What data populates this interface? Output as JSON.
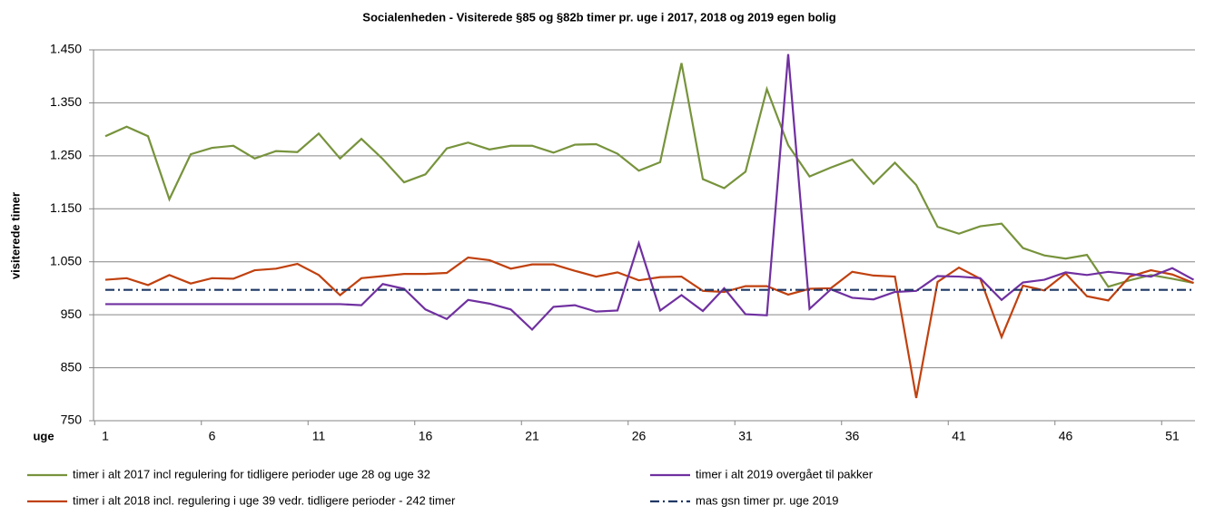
{
  "chart_data": {
    "type": "line",
    "title": "Socialenheden - Visiterede §85 og §82b timer pr. uge i 2017, 2018 og 2019 egen bolig",
    "x_label": "uge",
    "y_label": "visiterede timer",
    "categories": [
      1,
      null,
      null,
      null,
      null,
      6,
      null,
      null,
      null,
      null,
      11,
      null,
      null,
      null,
      null,
      16,
      null,
      null,
      null,
      null,
      21,
      null,
      null,
      null,
      null,
      26,
      null,
      null,
      null,
      null,
      31,
      null,
      null,
      null,
      null,
      36,
      null,
      null,
      null,
      null,
      41,
      null,
      null,
      null,
      null,
      46,
      null,
      null,
      null,
      null,
      51,
      null
    ],
    "ylim": [
      750,
      1450
    ],
    "yticks": [
      750,
      850,
      950,
      {
        "value": 1050,
        "label": "1.050"
      },
      {
        "value": 1150,
        "label": "1.150"
      },
      {
        "value": 1250,
        "label": "1.250"
      },
      {
        "value": 1350,
        "label": "1.350"
      },
      {
        "value": 1450,
        "label": "1.450"
      }
    ],
    "grid": true,
    "legend": "bottom",
    "series": [
      {
        "name": "timer i alt 2017 incl regulering for tidligere perioder uge 28 og uge 32",
        "color": "#77933c",
        "dash": "solid",
        "values": [
          1287,
          1305,
          1287,
          1168,
          1253,
          1265,
          1269,
          1245,
          1259,
          1257,
          1292,
          1245,
          1282,
          1244,
          1200,
          1215,
          1264,
          1275,
          1262,
          1269,
          1269,
          1256,
          1271,
          1272,
          1254,
          1222,
          1238,
          1425,
          1206,
          1189,
          1220,
          1376,
          1270,
          1211,
          1228,
          1243,
          1197,
          1237,
          1195,
          1116,
          1103,
          1117,
          1122,
          1076,
          1062,
          1056,
          1063,
          1003,
          1015,
          1025,
          1018,
          1010
        ]
      },
      {
        "name": "timer i alt 2018 incl. regulering i uge 39 vedr. tidligere perioder - 242 timer",
        "color": "#c0410f",
        "dash": "solid",
        "values": [
          1016,
          1019,
          1006,
          1025,
          1009,
          1019,
          1018,
          1034,
          1037,
          1046,
          1025,
          987,
          1019,
          1023,
          1027,
          1027,
          1029,
          1058,
          1053,
          1037,
          1045,
          1045,
          1033,
          1022,
          1030,
          1015,
          1021,
          1022,
          995,
          993,
          1004,
          1004,
          988,
          999,
          1000,
          1031,
          1024,
          1022,
          793,
          1012,
          1039,
          1018,
          908,
          1005,
          996,
          1028,
          985,
          977,
          1022,
          1034,
          1026,
          1010
        ]
      },
      {
        "name": "timer i alt 2019 overgået til pakker",
        "color": "#7030a0",
        "dash": "solid",
        "values": [
          970,
          970,
          970,
          970,
          970,
          970,
          970,
          970,
          970,
          970,
          970,
          970,
          968,
          1008,
          999,
          960,
          942,
          978,
          971,
          960,
          922,
          965,
          968,
          956,
          958,
          1085,
          958,
          987,
          957,
          1000,
          951,
          949,
          1442,
          961,
          998,
          982,
          979,
          993,
          995,
          1023,
          1022,
          1019,
          978,
          1011,
          1016,
          1030,
          1025,
          1031,
          1027,
          1022,
          1038,
          1016
        ]
      },
      {
        "name": "mas gsn timer pr. uge 2019",
        "color": "#1f3864",
        "dash": "dashdot",
        "values": [
          997,
          997,
          997,
          997,
          997,
          997,
          997,
          997,
          997,
          997,
          997,
          997,
          997,
          997,
          997,
          997,
          997,
          997,
          997,
          997,
          997,
          997,
          997,
          997,
          997,
          997,
          997,
          997,
          997,
          997,
          997,
          997,
          997,
          997,
          997,
          997,
          997,
          997,
          997,
          997,
          997,
          997,
          997,
          997,
          997,
          997,
          997,
          997,
          997,
          997,
          997,
          997
        ]
      }
    ]
  }
}
